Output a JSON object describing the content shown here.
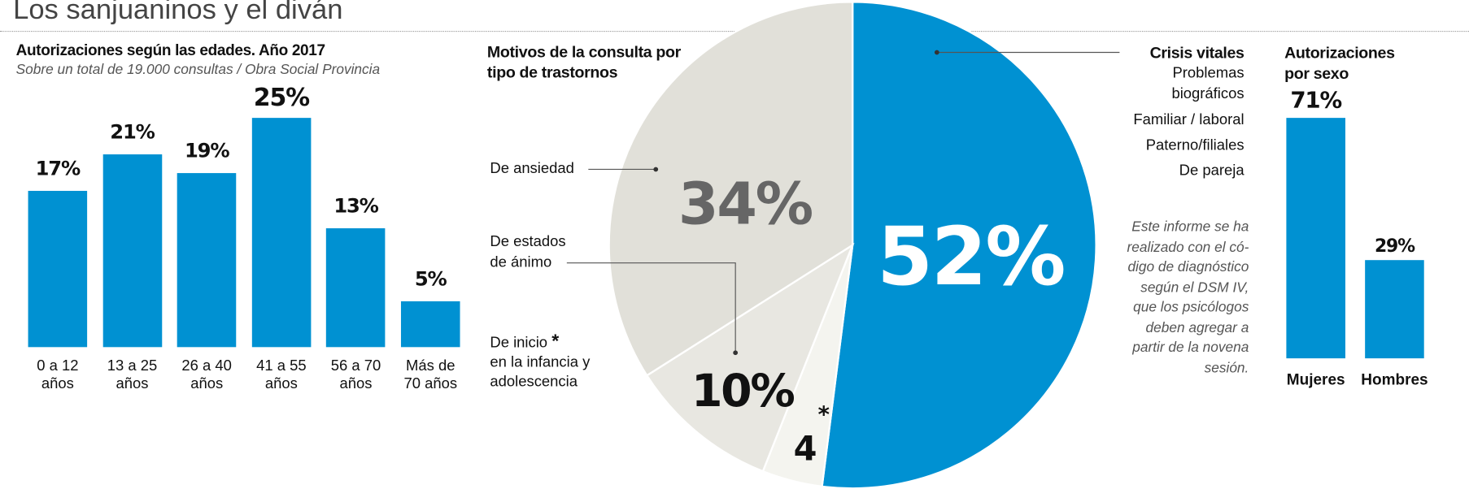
{
  "title": "Los sanjuaninos y el diván",
  "colors": {
    "blue": "#0091d2",
    "gray_34": "#e1e0d9",
    "gray_10": "#e8e7e1",
    "gray_4": "#f4f4ef"
  },
  "chart_data": [
    {
      "type": "bar",
      "title": "Autorizaciones  según las edades. Año 2017",
      "subtitle": "Sobre un total de 19.000 consultas / Obra Social Provincia",
      "categories": [
        [
          "0 a 12",
          "años"
        ],
        [
          "13 a 25",
          "años"
        ],
        [
          "26 a 40",
          "años"
        ],
        [
          "41 a 55",
          "años"
        ],
        [
          "56 a 70",
          "años"
        ],
        [
          "Más de",
          "70 años"
        ]
      ],
      "values": [
        17,
        21,
        19,
        25,
        13,
        5
      ],
      "labels": [
        "17%",
        "21%",
        "19%",
        "25%",
        "13%",
        "5%"
      ],
      "unit": "%"
    },
    {
      "type": "pie",
      "title": [
        "Motivos de la consulta por",
        "tipo de trastornos"
      ],
      "slices": [
        {
          "name": "Crisis vitales",
          "value": 52,
          "label": "52%"
        },
        {
          "name": "De inicio en la infancia y adolescencia",
          "value": 4,
          "label": "4",
          "marker": "*"
        },
        {
          "name": "De estados de ánimo",
          "value": 10,
          "label": "10%"
        },
        {
          "name": "De ansiedad",
          "value": 34,
          "label": "34%"
        }
      ],
      "annotations": {
        "ansiedad": "De ansiedad",
        "animo": [
          "De estados",
          "de ánimo"
        ],
        "inicio": [
          "De inicio",
          "*",
          "en la infancia y",
          "adolescencia"
        ],
        "crisis": {
          "title": "Crisis vitales",
          "items": [
            "Problemas",
            "biográficos",
            "Familiar / laboral",
            "Paterno/filiales",
            "De pareja"
          ]
        }
      },
      "note": [
        "Este informe se ha",
        "realizado con el có-",
        "digo de diagnóstico",
        "según el DSM IV,",
        "que los psicólogos",
        "deben agregar a",
        "partir de la novena",
        "sesión."
      ]
    },
    {
      "type": "bar",
      "title": [
        "Autorizaciones",
        "por sexo"
      ],
      "categories": [
        "Mujeres",
        "Hombres"
      ],
      "values": [
        71,
        29
      ],
      "labels": [
        "71%",
        "29%"
      ],
      "unit": "%"
    }
  ]
}
